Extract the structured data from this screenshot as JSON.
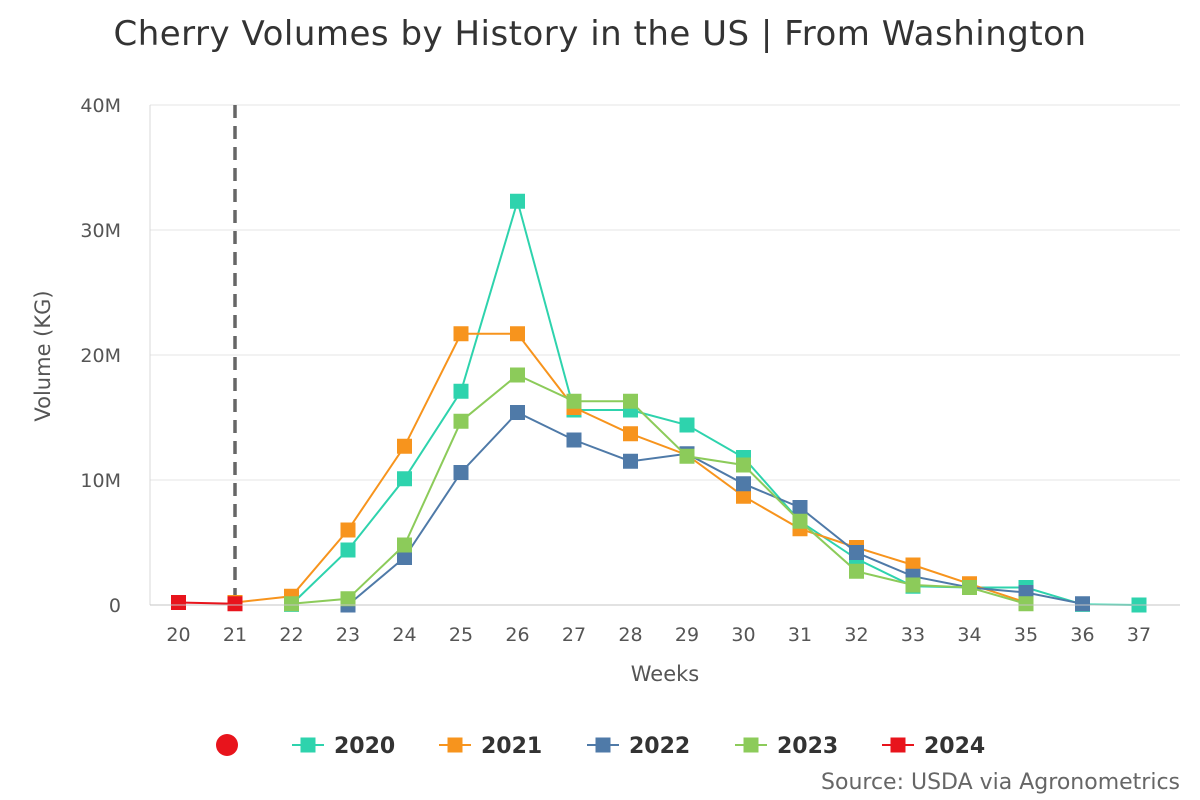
{
  "chart_data": {
    "type": "line",
    "title": "Cherry Volumes by History in the US | From Washington",
    "xlabel": "Weeks",
    "ylabel": "Volume (KG)",
    "x": [
      20,
      21,
      22,
      23,
      24,
      25,
      26,
      27,
      28,
      29,
      30,
      31,
      32,
      33,
      34,
      35,
      36,
      37
    ],
    "ylim": [
      0,
      40000000
    ],
    "yticks": [
      {
        "value": 0,
        "label": "0"
      },
      {
        "value": 10000000,
        "label": "10M"
      },
      {
        "value": 20000000,
        "label": "20M"
      },
      {
        "value": 30000000,
        "label": "30M"
      },
      {
        "value": 40000000,
        "label": "40M"
      }
    ],
    "current_week_marker": 21,
    "legend_position": "bottom",
    "series": [
      {
        "name": "2020",
        "color": "#2ed3ad",
        "points": [
          [
            22,
            50000
          ],
          [
            23,
            4400000
          ],
          [
            24,
            10100000
          ],
          [
            25,
            17100000
          ],
          [
            26,
            32300000
          ],
          [
            27,
            15600000
          ],
          [
            28,
            15600000
          ],
          [
            29,
            14400000
          ],
          [
            30,
            11800000
          ],
          [
            31,
            6700000
          ],
          [
            32,
            3700000
          ],
          [
            33,
            1500000
          ],
          [
            34,
            1400000
          ],
          [
            35,
            1400000
          ],
          [
            36,
            50000
          ],
          [
            37,
            0
          ]
        ]
      },
      {
        "name": "2021",
        "color": "#f7941d",
        "points": [
          [
            21,
            200000
          ],
          [
            22,
            700000
          ],
          [
            23,
            6000000
          ],
          [
            24,
            12700000
          ],
          [
            25,
            21700000
          ],
          [
            26,
            21700000
          ],
          [
            27,
            15800000
          ],
          [
            28,
            13700000
          ],
          [
            29,
            12000000
          ],
          [
            30,
            8700000
          ],
          [
            31,
            6100000
          ],
          [
            32,
            4600000
          ],
          [
            33,
            3200000
          ],
          [
            34,
            1700000
          ],
          [
            35,
            200000
          ]
        ]
      },
      {
        "name": "2022",
        "color": "#4f7aa8",
        "points": [
          [
            23,
            0
          ],
          [
            24,
            3800000
          ],
          [
            25,
            10600000
          ],
          [
            26,
            15400000
          ],
          [
            27,
            13200000
          ],
          [
            28,
            11500000
          ],
          [
            29,
            12100000
          ],
          [
            30,
            9700000
          ],
          [
            31,
            7800000
          ],
          [
            32,
            4200000
          ],
          [
            33,
            2300000
          ],
          [
            34,
            1400000
          ],
          [
            35,
            1000000
          ],
          [
            36,
            100000
          ]
        ]
      },
      {
        "name": "2023",
        "color": "#8ccb5a",
        "points": [
          [
            22,
            100000
          ],
          [
            23,
            500000
          ],
          [
            24,
            4800000
          ],
          [
            25,
            14700000
          ],
          [
            26,
            18400000
          ],
          [
            27,
            16300000
          ],
          [
            28,
            16300000
          ],
          [
            29,
            11900000
          ],
          [
            30,
            11200000
          ],
          [
            31,
            6700000
          ],
          [
            32,
            2700000
          ],
          [
            33,
            1600000
          ],
          [
            34,
            1400000
          ],
          [
            35,
            100000
          ]
        ]
      },
      {
        "name": "2024",
        "color": "#e8141c",
        "points": [
          [
            20,
            200000
          ],
          [
            21,
            100000
          ]
        ]
      }
    ],
    "legend_dot_color": "#e8141c",
    "source": "Source: USDA via Agronometrics"
  }
}
